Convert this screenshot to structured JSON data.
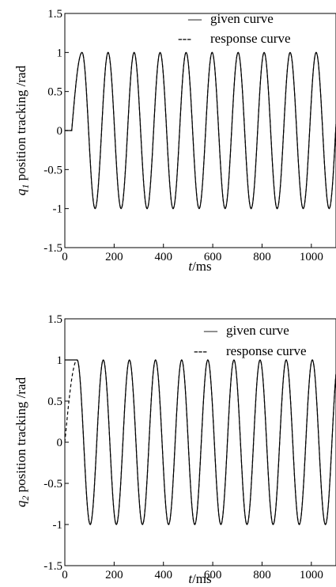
{
  "chart_data": [
    {
      "type": "line",
      "xlim": [
        0,
        1100
      ],
      "ylim": [
        -1.5,
        1.5
      ],
      "xticks": [
        "0",
        "200",
        "400",
        "600",
        "800",
        "1000"
      ],
      "yticks": [
        "1.5",
        "1",
        "0.5",
        "0",
        "-0.5",
        "-1",
        "-1.5"
      ],
      "xlabel": {
        "italic": "t",
        "rest": "/ms"
      },
      "ylabel": {
        "sym": "q",
        "sub": "1",
        "rest": " position tracking /rad"
      },
      "grid": false,
      "legend_position": "top-right",
      "legend": [
        {
          "marker": "—",
          "label": "given curve",
          "style": "solid"
        },
        {
          "marker": "---",
          "label": "response curve",
          "style": "dashed"
        }
      ],
      "series": [
        {
          "name": "given curve",
          "style": "solid",
          "hold_until_ms": 28,
          "hold_value": 0,
          "period_ms": 105.5,
          "first_peak_ms": 70,
          "amplitude": 1
        },
        {
          "name": "response curve",
          "style": "dashed",
          "hold_until_ms": 28,
          "hold_value": 0,
          "period_ms": 105.5,
          "first_peak_ms": 70,
          "amplitude": 1
        }
      ]
    },
    {
      "type": "line",
      "xlim": [
        0,
        1100
      ],
      "ylim": [
        -1.5,
        1.5
      ],
      "xticks": [
        "0",
        "200",
        "400",
        "600",
        "800",
        "1000"
      ],
      "yticks": [
        "1.5",
        "1",
        "0.5",
        "0",
        "-0.5",
        "-1",
        "-1.5"
      ],
      "xlabel": {
        "italic": "t",
        "rest": "/ms"
      },
      "ylabel": {
        "sym": "q",
        "sub": "2",
        "rest": " position tracking /rad"
      },
      "grid": false,
      "legend_position": "top-right",
      "legend": [
        {
          "marker": "—",
          "label": "given curve",
          "style": "solid"
        },
        {
          "marker": "---",
          "label": "response curve",
          "style": "dashed"
        }
      ],
      "series": [
        {
          "name": "given curve",
          "style": "solid",
          "hold_until_ms": 50,
          "hold_value": 1,
          "period_ms": 106,
          "first_peak_ms": 50,
          "amplitude": 1
        },
        {
          "name": "response curve",
          "style": "dashed",
          "start_value": 0,
          "rise_until_ms": 50,
          "period_ms": 106,
          "first_peak_ms": 50,
          "amplitude": 1
        }
      ]
    }
  ]
}
